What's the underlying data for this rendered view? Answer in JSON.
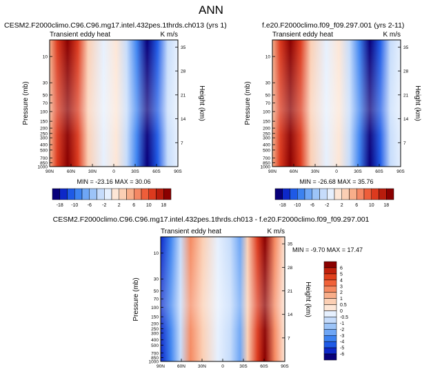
{
  "title": "ANN",
  "chart_data": [
    {
      "type": "contour",
      "panel": "top-left",
      "title": "CESM2.F2000climo.C96.C96.mg17.intel.432pes.1thrds.ch013 (yrs 1)",
      "subtitle": "Transient eddy heat",
      "units": "K m/s",
      "ylabel": "Pressure (mb)",
      "ylabel_right": "Height (km)",
      "x_ticks": [
        "90N",
        "60N",
        "30N",
        "0",
        "30S",
        "60S",
        "90S"
      ],
      "y_ticks": [
        "10",
        "30",
        "50",
        "70",
        "100",
        "150",
        "200",
        "250",
        "300",
        "400",
        "500",
        "700",
        "850",
        "1000"
      ],
      "height_ticks": [
        "35",
        "28",
        "21",
        "14",
        "7"
      ],
      "stats": "MIN = -23.16  MAX = 30.06",
      "colorbar_labels": [
        "-18",
        "-10",
        "-6",
        "-2",
        "2",
        "6",
        "10",
        "18"
      ]
    },
    {
      "type": "contour",
      "panel": "top-right",
      "title": "f.e20.F2000climo.f09_f09.297.001 (yrs 2-11)",
      "subtitle": "Transient eddy heat",
      "units": "K m/s",
      "ylabel": "Pressure (mb)",
      "ylabel_right": "Height (km)",
      "x_ticks": [
        "90N",
        "60N",
        "30N",
        "0",
        "30S",
        "60S",
        "90S"
      ],
      "y_ticks": [
        "10",
        "30",
        "50",
        "70",
        "100",
        "150",
        "200",
        "250",
        "300",
        "400",
        "500",
        "700",
        "850",
        "1000"
      ],
      "height_ticks": [
        "35",
        "28",
        "21",
        "14",
        "7"
      ],
      "stats": "MIN = -26.68  MAX = 35.76",
      "colorbar_labels": [
        "-18",
        "-10",
        "-6",
        "-2",
        "2",
        "6",
        "10",
        "18"
      ]
    },
    {
      "type": "contour",
      "panel": "bottom-difference",
      "title": "CESM2.F2000climo.C96.C96.mg17.intel.432pes.1thrds.ch013 - f.e20.F2000climo.f09_f09.297.001",
      "subtitle": "Transient eddy heat",
      "units": "K m/s",
      "ylabel": "Pressure (mb)",
      "ylabel_right": "Height (km)",
      "x_ticks": [
        "90N",
        "60N",
        "30N",
        "0",
        "30S",
        "60S",
        "90S"
      ],
      "y_ticks": [
        "10",
        "30",
        "50",
        "70",
        "100",
        "150",
        "200",
        "250",
        "300",
        "400",
        "500",
        "700",
        "850",
        "1000"
      ],
      "height_ticks": [
        "35",
        "28",
        "21",
        "14",
        "7"
      ],
      "stats": "MIN = -9.70  MAX = 17.47",
      "colorbar_labels": [
        "6",
        "5",
        "4",
        "3",
        "2",
        "1",
        "0.5",
        "0",
        "-0.5",
        "-1",
        "-2",
        "-3",
        "-4",
        "-5",
        "-6"
      ]
    }
  ],
  "colors": {
    "top_colorbar": [
      "#08007a",
      "#0d28c8",
      "#1e5ae6",
      "#3c82f0",
      "#6ea6f5",
      "#9cc4f8",
      "#c6dcfb",
      "#e6f0fe",
      "#fde6d6",
      "#fbcfb4",
      "#f8ae8a",
      "#f58864",
      "#ee5e3a",
      "#dc3a1e",
      "#b81c0c",
      "#8a0000"
    ],
    "diff_colorbar": [
      "#8a0000",
      "#c0200c",
      "#e0401c",
      "#f0623a",
      "#f58a62",
      "#f8ae8a",
      "#fbcfb4",
      "#fde6d6",
      "#e6f0fe",
      "#c6dcfb",
      "#9cc4f8",
      "#6ea6f5",
      "#3c82f0",
      "#1e5ae6",
      "#0d28c8",
      "#08007a"
    ]
  }
}
